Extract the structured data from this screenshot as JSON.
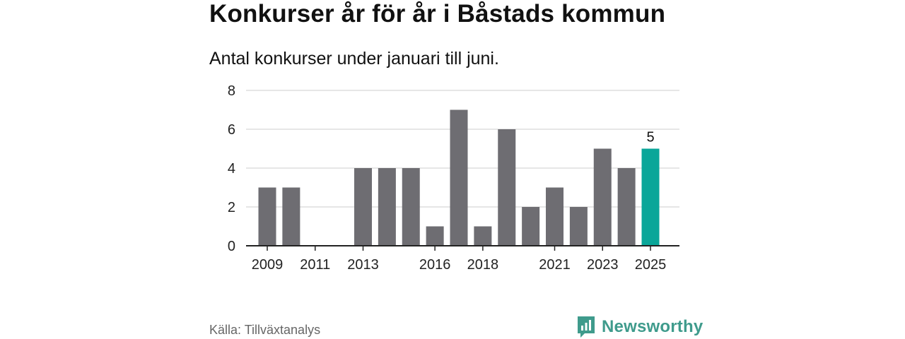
{
  "title": "Konkurser år för år i Båstads kommun",
  "subtitle": "Antal konkurser under januari till juni.",
  "source": "Källa: Tillväxtanalys",
  "brand": {
    "name": "Newsworthy",
    "logo_icon": "newsworthy-logo-icon",
    "color": "#3f9b8c"
  },
  "chart_data": {
    "type": "bar",
    "categories": [
      "2009",
      "2010",
      "2011",
      "2012",
      "2013",
      "2014",
      "2015",
      "2016",
      "2017",
      "2018",
      "2019",
      "2020",
      "2021",
      "2022",
      "2023",
      "2024",
      "2025"
    ],
    "values": [
      3,
      3,
      0,
      0,
      4,
      4,
      4,
      1,
      7,
      1,
      6,
      2,
      3,
      2,
      5,
      4,
      5
    ],
    "x_tick_labels": [
      "2009",
      "2011",
      "2013",
      "2016",
      "2018",
      "2021",
      "2023",
      "2025"
    ],
    "y_ticks": [
      0,
      2,
      4,
      6,
      8
    ],
    "ylim": [
      0,
      8
    ],
    "grid": true,
    "highlight": {
      "category": "2025",
      "label": "5"
    },
    "colors": {
      "bar": "#6e6d72",
      "highlight": "#0aa699",
      "grid": "#dddddd",
      "axis": "#222222"
    }
  }
}
